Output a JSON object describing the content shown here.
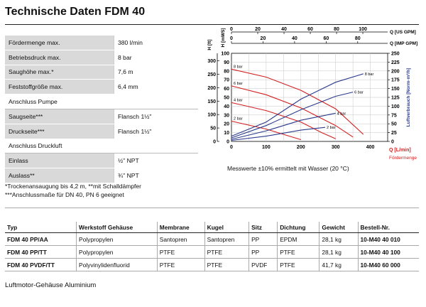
{
  "title": "Technische Daten FDM 40",
  "specs": [
    {
      "type": "row",
      "label": "Fördermenge max.",
      "value": "380 l/min"
    },
    {
      "type": "row",
      "label": "Betriebsdruck max.",
      "value": "8 bar"
    },
    {
      "type": "row",
      "label": "Saughöhe max.*",
      "value": "7,6 m"
    },
    {
      "type": "row",
      "label": "Feststoffgröße max.",
      "value": "6,4 mm"
    },
    {
      "type": "section",
      "label": "Anschluss Pumpe"
    },
    {
      "type": "row",
      "label": "Saugseite***",
      "value": "Flansch 1½\""
    },
    {
      "type": "row",
      "label": "Druckseite***",
      "value": "Flansch 1½\""
    },
    {
      "type": "section",
      "label": "Anschluss Druckluft"
    },
    {
      "type": "row",
      "label": "Einlass",
      "value": "½\" NPT"
    },
    {
      "type": "row",
      "label": "Auslass**",
      "value": "¾\" NPT"
    }
  ],
  "footnotes": [
    "*Trockenansaugung bis 4,2 m, **mit Schalldämpfer",
    "***Anschlussmaße für DN 40, PN 6 geeignet"
  ],
  "measurement_note": "Messwerte ±10% ermittelt mit Wasser (20 °C)",
  "chart_data": {
    "type": "line",
    "axes": {
      "left_outer": {
        "label": "H [ft]",
        "ticks": [
          0,
          50,
          100,
          150,
          200,
          250,
          300
        ]
      },
      "left_inner": {
        "label": "H [mWS]",
        "ticks": [
          0,
          10,
          20,
          30,
          40,
          50,
          60,
          70,
          80,
          90,
          100
        ]
      },
      "right": {
        "label": "Luftverbrauch [Norm-m³/h]",
        "ticks": [
          0,
          25,
          50,
          75,
          100,
          125,
          150,
          175,
          200,
          225,
          250
        ]
      },
      "bottom": {
        "label": "Q [L/min]",
        "sublabel": "Fördermenge",
        "ticks": [
          0,
          100,
          200,
          300,
          400
        ],
        "range": [
          0,
          450
        ]
      },
      "top_us": {
        "label": "Q [US GPM]",
        "ticks": [
          0,
          20,
          40,
          60,
          80,
          100
        ]
      },
      "top_imp": {
        "label": "Q [IMP GPM]",
        "ticks": [
          0,
          20,
          40,
          60,
          80
        ]
      }
    },
    "grid": true,
    "colors": {
      "performance": "#d42020",
      "air": "#2b3a8c"
    },
    "performance_curves": [
      {
        "name": "8 bar",
        "points": [
          [
            0,
            82
          ],
          [
            100,
            73
          ],
          [
            200,
            58
          ],
          [
            300,
            37
          ],
          [
            380,
            8
          ]
        ]
      },
      {
        "name": "6 bar",
        "points": [
          [
            0,
            63
          ],
          [
            100,
            53
          ],
          [
            200,
            38
          ],
          [
            300,
            18
          ],
          [
            350,
            5
          ]
        ]
      },
      {
        "name": "4 bar",
        "points": [
          [
            0,
            44
          ],
          [
            100,
            35
          ],
          [
            200,
            22
          ],
          [
            260,
            10
          ],
          [
            300,
            3
          ]
        ]
      },
      {
        "name": "2 bar",
        "points": [
          [
            0,
            23
          ],
          [
            100,
            14
          ],
          [
            150,
            8
          ],
          [
            200,
            2
          ]
        ]
      }
    ],
    "air_curves": [
      {
        "name": "8 bar",
        "points": [
          [
            0,
            15
          ],
          [
            100,
            55
          ],
          [
            200,
            120
          ],
          [
            300,
            168
          ],
          [
            380,
            192
          ]
        ]
      },
      {
        "name": "6 bar",
        "points": [
          [
            0,
            10
          ],
          [
            100,
            45
          ],
          [
            200,
            90
          ],
          [
            300,
            128
          ],
          [
            350,
            140
          ]
        ]
      },
      {
        "name": "4 bar",
        "points": [
          [
            0,
            6
          ],
          [
            100,
            30
          ],
          [
            200,
            60
          ],
          [
            300,
            80
          ]
        ]
      },
      {
        "name": "2 bar",
        "points": [
          [
            0,
            3
          ],
          [
            100,
            15
          ],
          [
            200,
            32
          ],
          [
            270,
            40
          ]
        ]
      }
    ]
  },
  "models": {
    "headers": [
      "Typ",
      "Werkstoff Gehäuse",
      "Membrane",
      "Kugel",
      "Sitz",
      "Dichtung",
      "Gewicht",
      "Bestell-Nr."
    ],
    "rows": [
      [
        "FDM 40 PP/AA",
        "Polypropylen",
        "Santopren",
        "Santopren",
        "PP",
        "EPDM",
        "28,1 kg",
        "10-M40 40 010"
      ],
      [
        "FDM 40 PP/TT",
        "Polypropylen",
        "PTFE",
        "PTFE",
        "PP",
        "PTFE",
        "28,1 kg",
        "10-M40 40 100"
      ],
      [
        "FDM 40 PVDF/TT",
        "Polyvinylidenfluorid",
        "PTFE",
        "PTFE",
        "PVDF",
        "PTFE",
        "41,7 kg",
        "10-M40 60 000"
      ]
    ]
  },
  "footer": "Luftmotor-Gehäuse Aluminium"
}
